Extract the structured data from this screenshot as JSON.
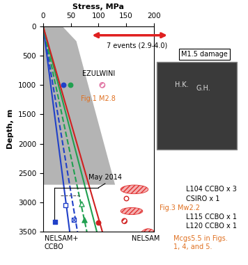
{
  "chart_data": {
    "type": "line",
    "xlabel": "Stress, MPa",
    "ylabel": "Depth, m",
    "xlim": [
      0,
      200
    ],
    "ylim": [
      3500,
      0
    ],
    "xticks": [
      0,
      50,
      100,
      150,
      200
    ],
    "yticks": [
      0,
      500,
      1000,
      1500,
      2000,
      2500,
      3000,
      3500
    ],
    "grid": false,
    "shaded_region": {
      "x": [
        0,
        35,
        60,
        130,
        0
      ],
      "y": [
        0,
        0,
        250,
        2700,
        2700
      ],
      "color": "#b4b4b4"
    },
    "series": [
      {
        "color": "#2040c8",
        "line_style": "solid",
        "x": [
          0,
          48
        ],
        "values": [
          0,
          3500
        ]
      },
      {
        "color": "#2040c8",
        "line_style": "dashed",
        "x": [
          0,
          62
        ],
        "values": [
          0,
          3500
        ]
      },
      {
        "color": "#20a050",
        "line_style": "dashed",
        "x": [
          0,
          79
        ],
        "values": [
          0,
          3500
        ]
      },
      {
        "color": "#20a050",
        "line_style": "solid",
        "x": [
          0,
          97
        ],
        "values": [
          0,
          3500
        ]
      },
      {
        "color": "#d02020",
        "line_style": "solid",
        "x": [
          0,
          107
        ],
        "values": [
          0,
          3500
        ]
      }
    ],
    "points": [
      {
        "x": 37,
        "y": 1000,
        "color": "#2040c8",
        "marker": "circle"
      },
      {
        "x": 49,
        "y": 1000,
        "color": "#20a050",
        "marker": "circle"
      },
      {
        "x": 107,
        "y": 1000,
        "color": "#e070a0",
        "marker": "circle_hatched"
      },
      {
        "x": 22,
        "y": 3330,
        "color": "#2040c8",
        "marker": "square"
      },
      {
        "x": 41,
        "y": 3050,
        "color": "#2040c8",
        "marker": "square_open"
      },
      {
        "x": 56,
        "y": 3300,
        "color": "#2040c8",
        "marker": "square_x"
      },
      {
        "x": 69,
        "y": 3020,
        "color": "#20a050",
        "marker": "triangle_open"
      },
      {
        "x": 75,
        "y": 3300,
        "color": "#20a050",
        "marker": "triangle"
      },
      {
        "x": 100,
        "y": 3350,
        "color": "#d02020",
        "marker": "circle"
      },
      {
        "x": 150,
        "y": 2930,
        "color": "#d02020",
        "marker": "circle_open"
      },
      {
        "x": 147,
        "y": 3320,
        "color": "#d02020",
        "marker": "circle_hatched"
      }
    ],
    "events": [
      {
        "x": 165,
        "y": 2780,
        "width": 50,
        "height": 150,
        "color": "#e03030"
      },
      {
        "x": 160,
        "y": 3150,
        "width": 40,
        "height": 120,
        "color": "#e03030"
      },
      {
        "x": 190,
        "y": 3700,
        "width": 40,
        "height": 500,
        "color": "#e03030"
      }
    ],
    "annotations": [
      {
        "text": "7 events (2.9-4.0)",
        "color": "#000000"
      },
      {
        "text": "M1.5 damage",
        "color": "#000000"
      },
      {
        "text": "EZULWINI",
        "color": "#000000"
      },
      {
        "text": "Fig.1 M2.8",
        "color": "#e07020"
      },
      {
        "text": "May 2014",
        "color": "#000000"
      },
      {
        "text": "L104 CCBO x 3",
        "color": "#000000"
      },
      {
        "text": "CSIRO x 1",
        "color": "#000000"
      },
      {
        "text": "Fig.3 Mw2.2",
        "color": "#e07020"
      },
      {
        "text": "L115 CCBO x 1",
        "color": "#000000"
      },
      {
        "text": "L120 CCBO x 1",
        "color": "#000000"
      },
      {
        "text": "NELSAM+\nCCBO",
        "color": "#000000"
      },
      {
        "text": "NELSAM",
        "color": "#000000"
      },
      {
        "text": "Mcgs5.5 in Figs.\n1, 4, and 5.",
        "color": "#e07020"
      },
      {
        "text": "H.K.",
        "color": "#dddddd"
      },
      {
        "text": "G.H.",
        "color": "#dddddd"
      }
    ]
  }
}
